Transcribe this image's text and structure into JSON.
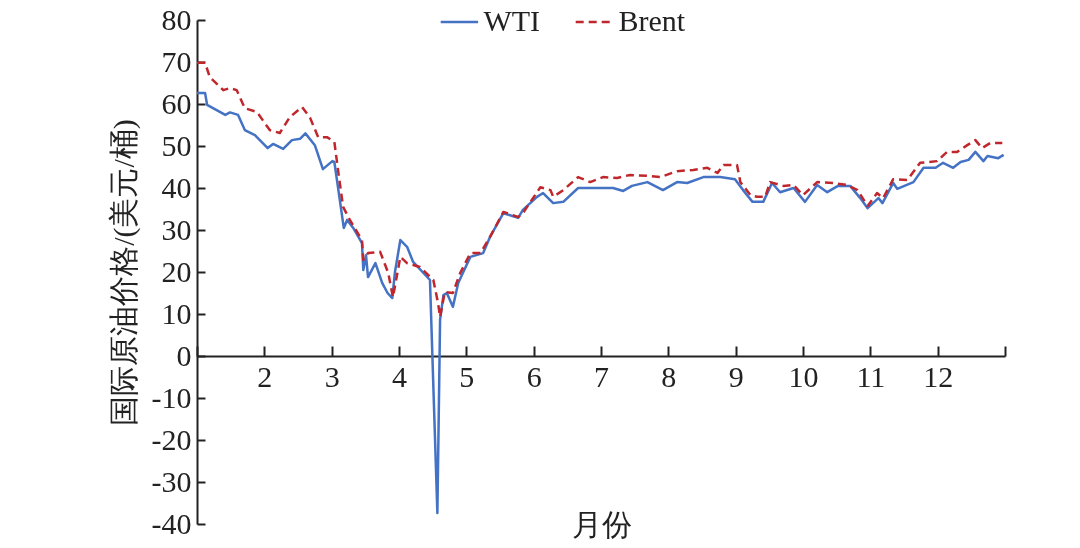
{
  "chart_data": {
    "type": "line",
    "xlabel": "月份",
    "ylabel": "国际原油价格/(美元/桶)",
    "xlim": [
      1,
      13
    ],
    "xticks": [
      {
        "value": 1,
        "label": null
      },
      2,
      3,
      4,
      5,
      6,
      7,
      8,
      9,
      10,
      11,
      12,
      {
        "value": 13,
        "label": null
      }
    ],
    "ylim": [
      -40,
      80
    ],
    "yticks": [
      -40,
      -30,
      -20,
      -10,
      0,
      10,
      20,
      30,
      40,
      50,
      60,
      70,
      80
    ],
    "legend": "top",
    "grid": false,
    "series": [
      {
        "name": "WTI",
        "color": "#4472c4",
        "line_style": "solid",
        "x": [
          1.0,
          1.12,
          1.15,
          1.42,
          1.49,
          1.61,
          1.71,
          1.86,
          2.05,
          2.13,
          2.28,
          2.41,
          2.53,
          2.61,
          2.75,
          2.87,
          3.01,
          3.04,
          3.1,
          3.18,
          3.23,
          3.32,
          3.45,
          3.47,
          3.51,
          3.54,
          3.65,
          3.75,
          3.83,
          3.9,
          3.94,
          4.02,
          4.12,
          4.21,
          4.46,
          4.57,
          4.61,
          4.66,
          4.71,
          4.8,
          4.88,
          4.95,
          5.06,
          5.25,
          5.35,
          5.55,
          5.77,
          5.84,
          6.05,
          6.14,
          6.29,
          6.44,
          6.66,
          6.94,
          7.18,
          7.33,
          7.46,
          7.69,
          7.92,
          8.13,
          8.28,
          8.52,
          8.77,
          8.99,
          9.11,
          9.25,
          9.41,
          9.54,
          9.66,
          9.86,
          10.03,
          10.21,
          10.36,
          10.52,
          10.7,
          10.85,
          10.96,
          11.12,
          11.18,
          11.34,
          11.4,
          11.64,
          11.79,
          11.97,
          12.08,
          12.23,
          12.34,
          12.46,
          12.56,
          12.68,
          12.74,
          12.9,
          12.98
        ],
        "values": [
          62.6,
          62.6,
          59.8,
          57.4,
          58,
          57.4,
          53.8,
          52.6,
          49.5,
          50.5,
          49.3,
          51.4,
          51.7,
          53,
          50.2,
          44.5,
          46.4,
          46.2,
          39.5,
          30.5,
          32.4,
          30.5,
          26.9,
          20.5,
          24,
          18.8,
          22.1,
          17.4,
          15,
          13.8,
          20,
          27.6,
          26,
          22.4,
          18.1,
          -37.4,
          8.6,
          14.5,
          15,
          11.7,
          17.4,
          19.8,
          23.6,
          24.5,
          28.3,
          34,
          32.9,
          34.8,
          37.9,
          38.8,
          36.4,
          36.7,
          40,
          40,
          40,
          39.3,
          40.5,
          41.4,
          39.5,
          41.4,
          41.2,
          42.6,
          42.6,
          42.1,
          39.5,
          36.7,
          36.7,
          41.2,
          39,
          40,
          36.7,
          40.7,
          39,
          40.5,
          40.5,
          37.6,
          35.2,
          37.6,
          36.4,
          41.2,
          39.8,
          41.4,
          44.8,
          44.8,
          46,
          44.8,
          46.2,
          46.7,
          48.6,
          46.4,
          47.6,
          47.1,
          47.9
        ]
      },
      {
        "name": "Brent",
        "color": "#c0272d",
        "line_style": "dashed",
        "x": [
          1.0,
          1.12,
          1.19,
          1.39,
          1.49,
          1.59,
          1.71,
          1.89,
          2.08,
          2.23,
          2.38,
          2.56,
          2.68,
          2.8,
          2.93,
          3.04,
          3.1,
          3.17,
          3.27,
          3.45,
          3.47,
          3.54,
          3.72,
          3.84,
          3.91,
          4.02,
          4.12,
          4.31,
          4.51,
          4.58,
          4.61,
          4.68,
          4.8,
          4.91,
          5.06,
          5.21,
          5.35,
          5.55,
          5.77,
          5.84,
          6.1,
          6.25,
          6.29,
          6.44,
          6.66,
          6.84,
          7.03,
          7.24,
          7.43,
          7.69,
          7.88,
          8.13,
          8.37,
          8.58,
          8.73,
          8.82,
          9.02,
          9.07,
          9.22,
          9.32,
          9.44,
          9.51,
          9.71,
          9.86,
          10.0,
          10.21,
          10.45,
          10.66,
          10.81,
          10.96,
          11.1,
          11.19,
          11.34,
          11.55,
          11.74,
          11.99,
          12.14,
          12.29,
          12.44,
          12.56,
          12.66,
          12.78,
          12.96
        ],
        "values": [
          69.8,
          69.8,
          66.4,
          63.3,
          63.8,
          63.3,
          59,
          58.1,
          53.8,
          53.1,
          56.9,
          59.3,
          56.7,
          52.1,
          52.1,
          51,
          43.6,
          35.5,
          32.4,
          27.6,
          22.9,
          24.5,
          24.8,
          19.8,
          14,
          23.6,
          22.1,
          21.2,
          18.1,
          12.6,
          9.3,
          15.2,
          15,
          19.8,
          24.5,
          24.5,
          28.3,
          34.3,
          33.1,
          34,
          40.2,
          39.5,
          37.9,
          39.5,
          42.6,
          41.4,
          42.6,
          42.4,
          43.1,
          42.9,
          42.6,
          44,
          44.3,
          44.8,
          43.6,
          45.5,
          45.5,
          41.4,
          38.3,
          37.9,
          37.9,
          41.4,
          40.5,
          40.7,
          38.3,
          41.4,
          41.2,
          40.7,
          39.5,
          35.7,
          38.8,
          37.6,
          42.1,
          41.9,
          46,
          46.4,
          48.6,
          48.6,
          50.2,
          51.4,
          49.5,
          50.7,
          50.7
        ]
      }
    ]
  }
}
